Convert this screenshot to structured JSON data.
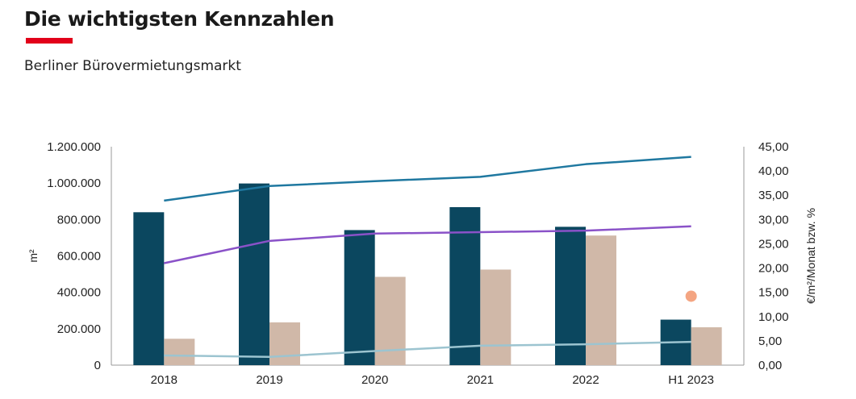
{
  "header": {
    "title": "Die wichtigsten Kennzahlen",
    "subtitle": "Berliner Bürovermietungsmarkt"
  },
  "colors": {
    "accent": "#e2001a",
    "bar_primary": "#0b475f",
    "bar_secondary": "#d0b8a8",
    "line_blue": "#1f78a0",
    "line_purple": "#8a52c8",
    "line_light": "#9cc4d0",
    "point_orange": "#f4a582"
  },
  "chart_data": {
    "type": "bar",
    "categories": [
      "2018",
      "2019",
      "2020",
      "2021",
      "2022",
      "H1 2023"
    ],
    "ylabel": "m²",
    "y2label": "€/m²/Monat bzw. %",
    "ylim": [
      0,
      1200000
    ],
    "y2lim": [
      0,
      45
    ],
    "yticks": [
      "0",
      "200.000",
      "400.000",
      "600.000",
      "800.000",
      "1.000.000",
      "1.200.000"
    ],
    "y2ticks": [
      "0,00",
      "5,00",
      "10,00",
      "15,00",
      "20,00",
      "25,00",
      "30,00",
      "35,00",
      "40,00",
      "45,00"
    ],
    "bar_series": [
      {
        "values": [
          840000,
          998000,
          742000,
          868000,
          760000,
          250000
        ]
      },
      {
        "values": [
          145000,
          235000,
          485000,
          525000,
          712000,
          208000
        ]
      }
    ],
    "line_series": [
      {
        "values": [
          33.9,
          36.9,
          37.9,
          38.8,
          41.4,
          42.9
        ]
      },
      {
        "values": [
          21.0,
          25.6,
          27.1,
          27.4,
          27.7,
          28.6
        ]
      },
      {
        "values": [
          2.0,
          1.7,
          2.9,
          4.0,
          4.3,
          4.8
        ]
      }
    ],
    "point_series": [
      {
        "category": "H1 2023",
        "value": 14.2
      }
    ],
    "grid": false,
    "legend": "none"
  }
}
